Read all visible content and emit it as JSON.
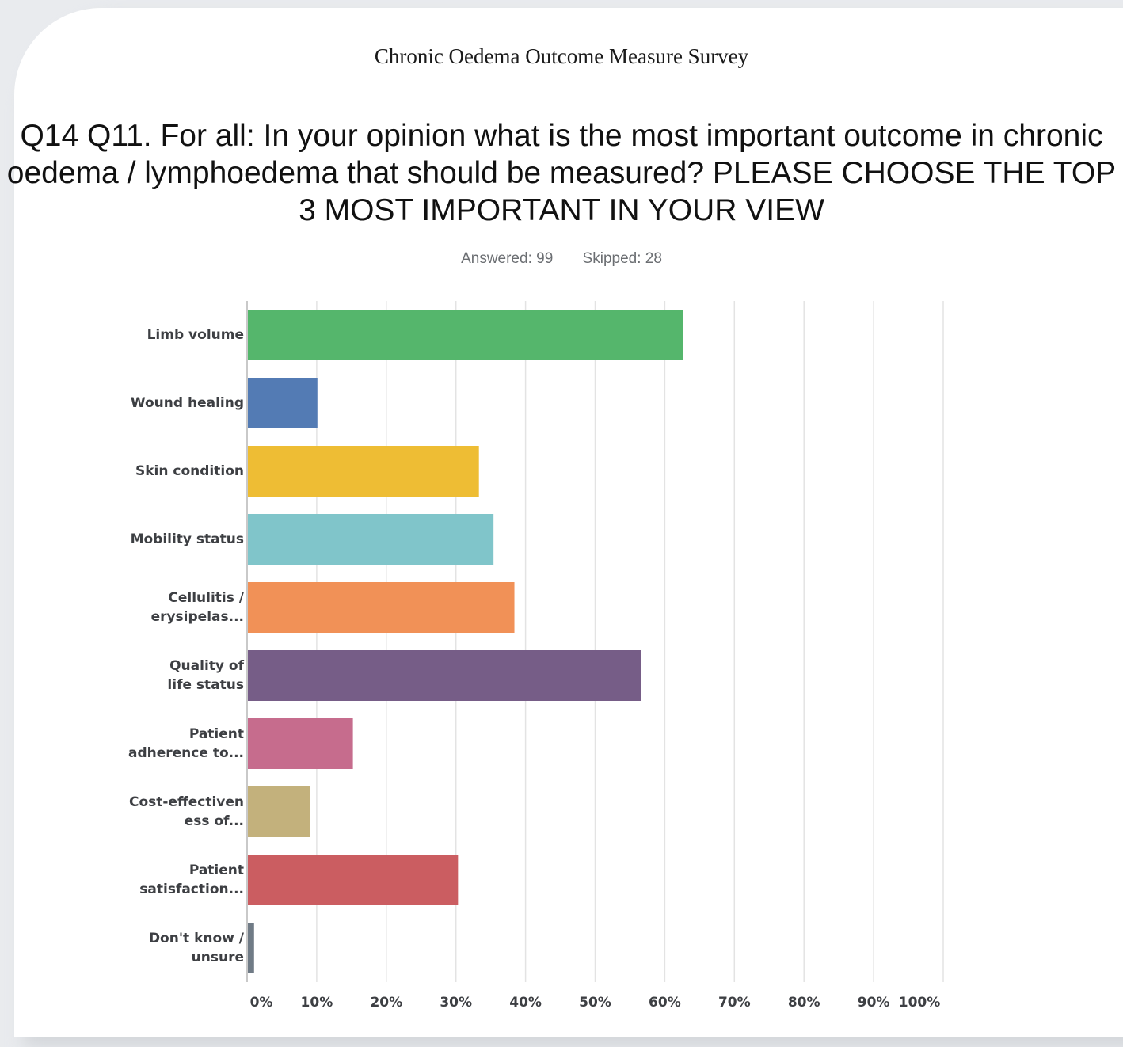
{
  "survey_title": "Chronic Oedema Outcome Measure Survey",
  "question": "Q14 Q11. For all: In your opinion what is the most important outcome in chronic oedema / lymphoedema that should be measured? PLEASE CHOOSE THE TOP 3 MOST IMPORTANT IN YOUR VIEW",
  "answered": "Answered: 99",
  "skipped": "Skipped: 28",
  "chart_data": {
    "type": "bar",
    "orientation": "horizontal",
    "categories": [
      "Limb volume",
      "Wound healing",
      "Skin condition",
      "Mobility status",
      "Cellulitis /\nerysipelas...",
      "Quality of\nlife status",
      "Patient\nadherence to...",
      "Cost-effectiven\ness of...",
      "Patient\nsatisfaction...",
      "Don't know /\nunsure"
    ],
    "values": [
      62.6,
      10.1,
      33.3,
      35.4,
      38.4,
      56.6,
      15.2,
      9.1,
      30.3,
      1.0
    ],
    "colors": [
      "#55b66c",
      "#537bb4",
      "#eebd34",
      "#80c5ca",
      "#f19157",
      "#765d87",
      "#c66c8d",
      "#c3b17c",
      "#cb5d61",
      "#707b86"
    ],
    "xlim": [
      0,
      100
    ],
    "ticks": [
      "0%",
      "10%",
      "20%",
      "30%",
      "40%",
      "50%",
      "60%",
      "70%",
      "80%",
      "90%",
      "100%"
    ],
    "grid": true,
    "grid_color": "#e3e3e3"
  }
}
